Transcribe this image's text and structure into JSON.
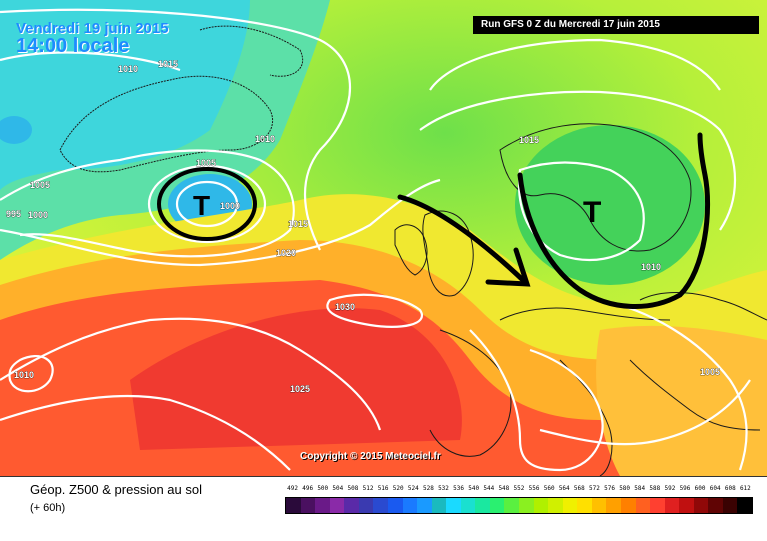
{
  "header": {
    "date": "Vendredi 19 juin 2015",
    "time": "14:00 locale",
    "run": "Run GFS 0 Z du Mercredi 17 juin 2015",
    "copyright": "Copyright © 2015 Meteociel.fr"
  },
  "map": {
    "lows": [
      {
        "letter": "T",
        "circled": true,
        "value": "1000"
      },
      {
        "letter": "T",
        "circled": false
      }
    ],
    "isobar_labels": [
      "1010",
      "1015",
      "1010",
      "1005",
      "1005",
      "995",
      "1000",
      "1000",
      "1015",
      "1020",
      "1015",
      "1010",
      "1030",
      "1025",
      "1010",
      "1005"
    ],
    "annotations": [
      {
        "type": "arrow",
        "color": "#000000"
      },
      {
        "type": "trough-curve",
        "color": "#000000"
      }
    ],
    "colors": {
      "isobars": "#ffffff",
      "annotations": "#000000",
      "low_circle": "#000000"
    }
  },
  "footer": {
    "title": "Géop. Z500 & pression au sol",
    "subtitle": "(+ 60h)"
  },
  "legend": {
    "values": [
      "492",
      "496",
      "500",
      "504",
      "508",
      "512",
      "516",
      "520",
      "524",
      "528",
      "532",
      "536",
      "540",
      "544",
      "548",
      "552",
      "556",
      "560",
      "564",
      "568",
      "572",
      "576",
      "580",
      "584",
      "588",
      "592",
      "596",
      "600",
      "604",
      "608",
      "612"
    ],
    "colors": [
      "#2a0a3a",
      "#4a1060",
      "#6a1a88",
      "#8a2aa8",
      "#5a2aa8",
      "#3a3ab0",
      "#2a4ad0",
      "#1a5af0",
      "#1a7aff",
      "#1a9aff",
      "#1ababf",
      "#1adaff",
      "#1ae0d0",
      "#1ae8a0",
      "#2af070",
      "#5af040",
      "#8af020",
      "#b0f000",
      "#d0f000",
      "#f0f000",
      "#ffe000",
      "#ffc000",
      "#ffa000",
      "#ff8000",
      "#ff6020",
      "#ff4030",
      "#e02020",
      "#c01010",
      "#900808",
      "#600404",
      "#3a0202",
      "#000000"
    ]
  }
}
